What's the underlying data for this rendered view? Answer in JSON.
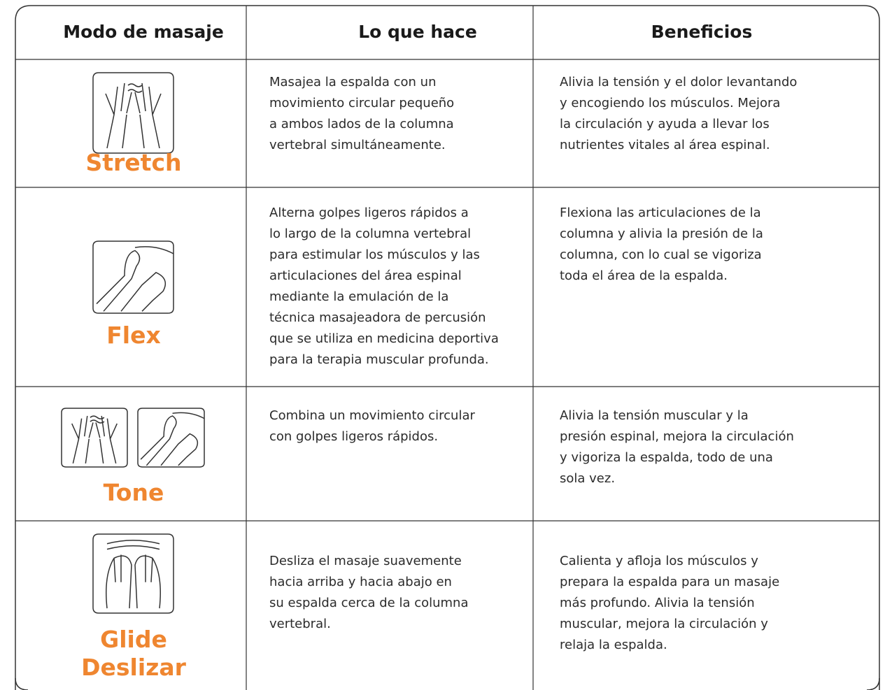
{
  "table": {
    "headers": [
      "Modo de masaje",
      "Lo que hace",
      "Beneficios"
    ],
    "rows": [
      {
        "mode": [
          "Stretch"
        ],
        "what": [
          "Masajea la espalda con un",
          "movimiento circular pequeño",
          "a ambos lados de la columna",
          "vertebral simultáneamente."
        ],
        "benefits": [
          "Alivia la tensión y el dolor levantando",
          "y encogiendo los músculos. Mejora",
          "la circulación y ayuda a llevar los",
          "nutrientes vitales al área espinal."
        ]
      },
      {
        "mode": [
          "Flex"
        ],
        "what": [
          "Alterna golpes ligeros rápidos a",
          "lo largo de la columna vertebral",
          "para estimular los músculos y las",
          "articulaciones del área espinal",
          "mediante la emulación de la",
          "técnica masajeadora de percusión",
          "que se utiliza en medicina deportiva",
          "para la terapia muscular profunda."
        ],
        "benefits": [
          "Flexiona las articulaciones de la",
          "columna y alivia la presión de la",
          "columna, con lo cual se vigoriza",
          "toda el área de la espalda."
        ]
      },
      {
        "mode": [
          "Tone"
        ],
        "what": [
          "Combina un movimiento circular",
          "con golpes ligeros rápidos."
        ],
        "benefits": [
          "Alivia la tensión muscular y la",
          "presión espinal, mejora la circulación",
          "y vigoriza la espalda, todo de una",
          "sola vez."
        ]
      },
      {
        "mode": [
          "Glide",
          "Deslizar"
        ],
        "what": [
          "Desliza el masaje suavemente",
          "hacia arriba y hacia abajo en",
          "su espalda cerca de la columna",
          "vertebral."
        ],
        "benefits": [
          "Calienta y afloja los músculos y",
          "prepara la espalda para un masaje",
          "más profundo. Alivia la tensión",
          "muscular, mejora la circulación y",
          "relaja la espalda."
        ]
      }
    ]
  }
}
